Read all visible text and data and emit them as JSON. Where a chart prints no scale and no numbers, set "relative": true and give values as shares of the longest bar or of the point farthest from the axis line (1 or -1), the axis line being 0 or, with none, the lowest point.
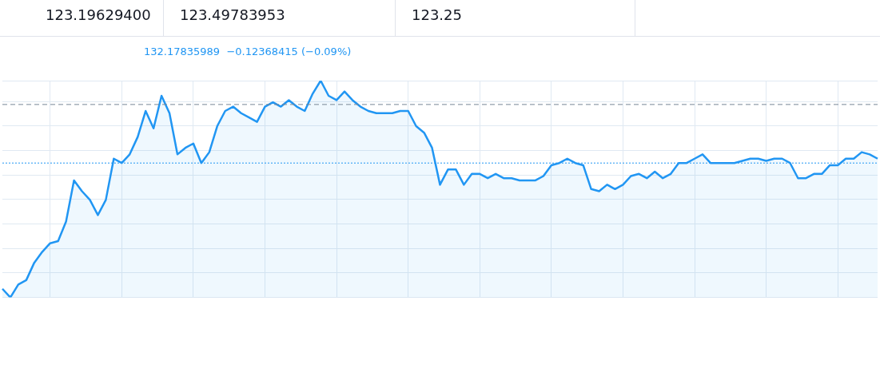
{
  "chart_data": {
    "type": "area",
    "relative": true,
    "grid": true,
    "legend": false,
    "marker": "none",
    "line_style": "solid",
    "categories": [
      null,
      null,
      null,
      null,
      null,
      null,
      null,
      null,
      null,
      null,
      null,
      null,
      null,
      null,
      null,
      null,
      null,
      null,
      null,
      null,
      null,
      null,
      null,
      null,
      null,
      null,
      null,
      null,
      null,
      null,
      null,
      null,
      null,
      null,
      null,
      null,
      null,
      null,
      null,
      null,
      null,
      null,
      null,
      null,
      null,
      null,
      null,
      null,
      null,
      null,
      null,
      null,
      null,
      null,
      null,
      null,
      null,
      null,
      null,
      null,
      null,
      null,
      null,
      null,
      null,
      null,
      null,
      null,
      null,
      null,
      null,
      null,
      null,
      null,
      null,
      null,
      null,
      null,
      null,
      null,
      null,
      null,
      null,
      null,
      null,
      null,
      null,
      null,
      null,
      null,
      null,
      null,
      null,
      null,
      null,
      null,
      null,
      null,
      null,
      null,
      null,
      null,
      null,
      null,
      null,
      null,
      null,
      null,
      null,
      null,
      null
    ],
    "series": [
      {
        "color": "#2196f3",
        "values": [
          0.04,
          0,
          0.06,
          0.08,
          0.16,
          0.21,
          0.25,
          0.26,
          0.35,
          0.54,
          0.49,
          0.45,
          0.38,
          0.45,
          0.64,
          0.62,
          0.66,
          0.74,
          0.86,
          0.78,
          0.93,
          0.85,
          0.66,
          0.69,
          0.71,
          0.62,
          0.67,
          0.79,
          0.86,
          0.88,
          0.85,
          0.83,
          0.81,
          0.88,
          0.9,
          0.88,
          0.91,
          0.88,
          0.86,
          0.94,
          1,
          0.93,
          0.91,
          0.95,
          0.91,
          0.88,
          0.86,
          0.85,
          0.85,
          0.85,
          0.86,
          0.86,
          0.79,
          0.76,
          0.69,
          0.52,
          0.59,
          0.59,
          0.52,
          0.57,
          0.57,
          0.55,
          0.57,
          0.55,
          0.55,
          0.54,
          0.54,
          0.54,
          0.56,
          0.61,
          0.62,
          0.64,
          0.62,
          0.61,
          0.5,
          0.49,
          0.52,
          0.5,
          0.52,
          0.56,
          0.57,
          0.55,
          0.58,
          0.55,
          0.57,
          0.62,
          0.62,
          0.64,
          0.66,
          0.62,
          0.62,
          0.62,
          0.62,
          0.63,
          0.64,
          0.64,
          0.63,
          0.64,
          0.64,
          0.62,
          0.55,
          0.55,
          0.57,
          0.57,
          0.61,
          0.61,
          0.64,
          0.64,
          0.67,
          0.66,
          0.64
        ]
      }
    ],
    "ref_lines": [
      {
        "axis": "y",
        "value": 0.89,
        "color": "#758696",
        "line_style": "dashed"
      },
      {
        "axis": "y",
        "value": 0.62,
        "color": "#2196f3",
        "line_style": "dotted"
      }
    ],
    "annotations": [
      "123.19629400",
      "123.49783953",
      "123.25",
      "132.17835989  −0.12368415 (−0.09%)"
    ]
  }
}
